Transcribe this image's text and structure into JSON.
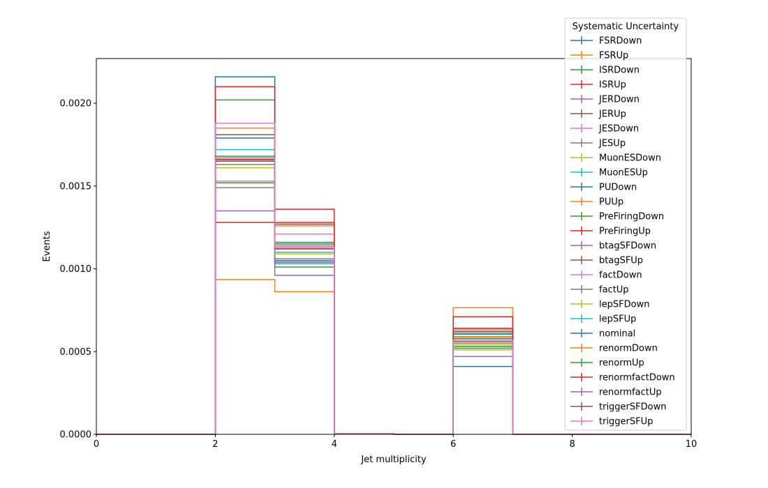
{
  "chart_data": {
    "type": "histogram-step",
    "xlabel": "Jet multiplicity",
    "ylabel": "Events",
    "xlim": [
      0,
      10
    ],
    "ylim": [
      0,
      0.00227
    ],
    "x_ticks": [
      0,
      2,
      4,
      6,
      8,
      10
    ],
    "x_tick_labels": [
      "0",
      "2",
      "4",
      "6",
      "8",
      "10"
    ],
    "y_ticks": [
      0,
      0.0005,
      0.001,
      0.0015,
      0.002
    ],
    "y_tick_labels": [
      "0.0000",
      "0.0005",
      "0.0010",
      "0.0015",
      "0.0020"
    ],
    "grid": false,
    "legend": {
      "title": "Systematic Uncertainty",
      "placement": "top-right"
    },
    "bin_edges": [
      0,
      1,
      2,
      3,
      4,
      5,
      6,
      7,
      8,
      9,
      10
    ],
    "series": [
      {
        "name": "FSRDown",
        "color": "#1f77b4",
        "values": [
          0,
          0,
          0.00216,
          0.00105,
          5e-06,
          0,
          0.000605,
          0,
          0,
          0
        ]
      },
      {
        "name": "FSRUp",
        "color": "#ff7f0e",
        "values": [
          0,
          0,
          0.000935,
          0.000862,
          5e-06,
          0,
          0.000765,
          0,
          0,
          0
        ]
      },
      {
        "name": "ISRDown",
        "color": "#2ca02c",
        "values": [
          0,
          0,
          0.00202,
          0.00101,
          5e-06,
          0,
          0.00052,
          0,
          0,
          0
        ]
      },
      {
        "name": "ISRUp",
        "color": "#d62728",
        "values": [
          0,
          0,
          0.00128,
          0.00136,
          5e-06,
          0,
          0.00071,
          0,
          0,
          0
        ]
      },
      {
        "name": "JERDown",
        "color": "#9467bd",
        "values": [
          0,
          0,
          0.00166,
          0.00112,
          5e-06,
          0,
          0.00058,
          0,
          0,
          0
        ]
      },
      {
        "name": "JERUp",
        "color": "#8c564b",
        "values": [
          0,
          0,
          0.00181,
          0.00113,
          5e-06,
          0,
          0.00056,
          0,
          0,
          0
        ]
      },
      {
        "name": "JESDown",
        "color": "#e377c2",
        "values": [
          0,
          0,
          0.00153,
          0.00121,
          5e-06,
          0,
          0.00064,
          0,
          0,
          0
        ]
      },
      {
        "name": "JESUp",
        "color": "#7f7f7f",
        "values": [
          0,
          0,
          0.00149,
          0.00103,
          5e-06,
          0,
          0.00063,
          0,
          0,
          0
        ]
      },
      {
        "name": "MuonESDown",
        "color": "#bcbd22",
        "values": [
          0,
          0,
          0.00161,
          0.00114,
          5e-06,
          0,
          0.00054,
          0,
          0,
          0
        ]
      },
      {
        "name": "MuonESUp",
        "color": "#17becf",
        "values": [
          0,
          0,
          0.00172,
          0.00116,
          5e-06,
          0,
          0.00061,
          0,
          0,
          0
        ]
      },
      {
        "name": "PUDown",
        "color": "#1f77b4",
        "values": [
          0,
          0,
          0.00179,
          0.00104,
          5e-06,
          0,
          0.00041,
          0,
          0,
          0
        ]
      },
      {
        "name": "PUUp",
        "color": "#ff7f0e",
        "values": [
          0,
          0,
          0.00185,
          0.00126,
          5e-06,
          0,
          0.00063,
          0,
          0,
          0
        ]
      },
      {
        "name": "PreFiringDown",
        "color": "#2ca02c",
        "values": [
          0,
          0,
          0.00152,
          0.00115,
          5e-06,
          0,
          0.00053,
          0,
          0,
          0
        ]
      },
      {
        "name": "PreFiringUp",
        "color": "#d62728",
        "values": [
          0,
          0,
          0.0021,
          0.00128,
          5e-06,
          0,
          0.00062,
          0,
          0,
          0
        ]
      },
      {
        "name": "btagSFDown",
        "color": "#9467bd",
        "values": [
          0,
          0,
          0.00135,
          0.00096,
          5e-06,
          0,
          0.00047,
          0,
          0,
          0
        ]
      },
      {
        "name": "btagSFUp",
        "color": "#8c564b",
        "values": [
          0,
          0,
          0.00167,
          0.00113,
          5e-06,
          0,
          0.00059,
          0,
          0,
          0
        ]
      },
      {
        "name": "factDown",
        "color": "#e377c2",
        "values": [
          0,
          0,
          0.00188,
          0.00114,
          5e-06,
          0,
          0.00057,
          0,
          0,
          0
        ]
      },
      {
        "name": "factUp",
        "color": "#7f7f7f",
        "values": [
          0,
          0,
          0.00163,
          0.00106,
          5e-06,
          0,
          0.00055,
          0,
          0,
          0
        ]
      },
      {
        "name": "lepSFDown",
        "color": "#bcbd22",
        "values": [
          0,
          0,
          0.00166,
          0.00109,
          5e-06,
          0,
          0.00051,
          0,
          0,
          0
        ]
      },
      {
        "name": "lepSFUp",
        "color": "#17becf",
        "values": [
          0,
          0,
          0.00167,
          0.0011,
          5e-06,
          0,
          0.00057,
          0,
          0,
          0
        ]
      },
      {
        "name": "nominal",
        "color": "#1f77b4",
        "values": [
          0,
          0,
          0.00166,
          0.00112,
          5e-06,
          0,
          0.00057,
          0,
          0,
          0
        ]
      },
      {
        "name": "renormDown",
        "color": "#ff7f0e",
        "values": [
          0,
          0,
          0.00166,
          0.00112,
          5e-06,
          0,
          0.00059,
          0,
          0,
          0
        ]
      },
      {
        "name": "renormUp",
        "color": "#2ca02c",
        "values": [
          0,
          0,
          0.00168,
          0.00116,
          5e-06,
          0,
          0.00058,
          0,
          0,
          0
        ]
      },
      {
        "name": "renormfactDown",
        "color": "#d62728",
        "values": [
          0,
          0,
          0.00165,
          0.00127,
          5e-06,
          0,
          0.00064,
          0,
          0,
          0
        ]
      },
      {
        "name": "renormfactUp",
        "color": "#9467bd",
        "values": [
          0,
          0,
          0.00166,
          0.00113,
          5e-06,
          0,
          0.00057,
          0,
          0,
          0
        ]
      },
      {
        "name": "triggerSFDown",
        "color": "#8c564b",
        "values": [
          0,
          0,
          0.00166,
          0.00112,
          5e-06,
          0,
          0.00057,
          0,
          0,
          0
        ]
      },
      {
        "name": "triggerSFUp",
        "color": "#e377c2",
        "values": [
          0,
          0,
          0.00167,
          0.00113,
          5e-06,
          0,
          0.00057,
          0,
          0,
          0
        ]
      }
    ]
  }
}
